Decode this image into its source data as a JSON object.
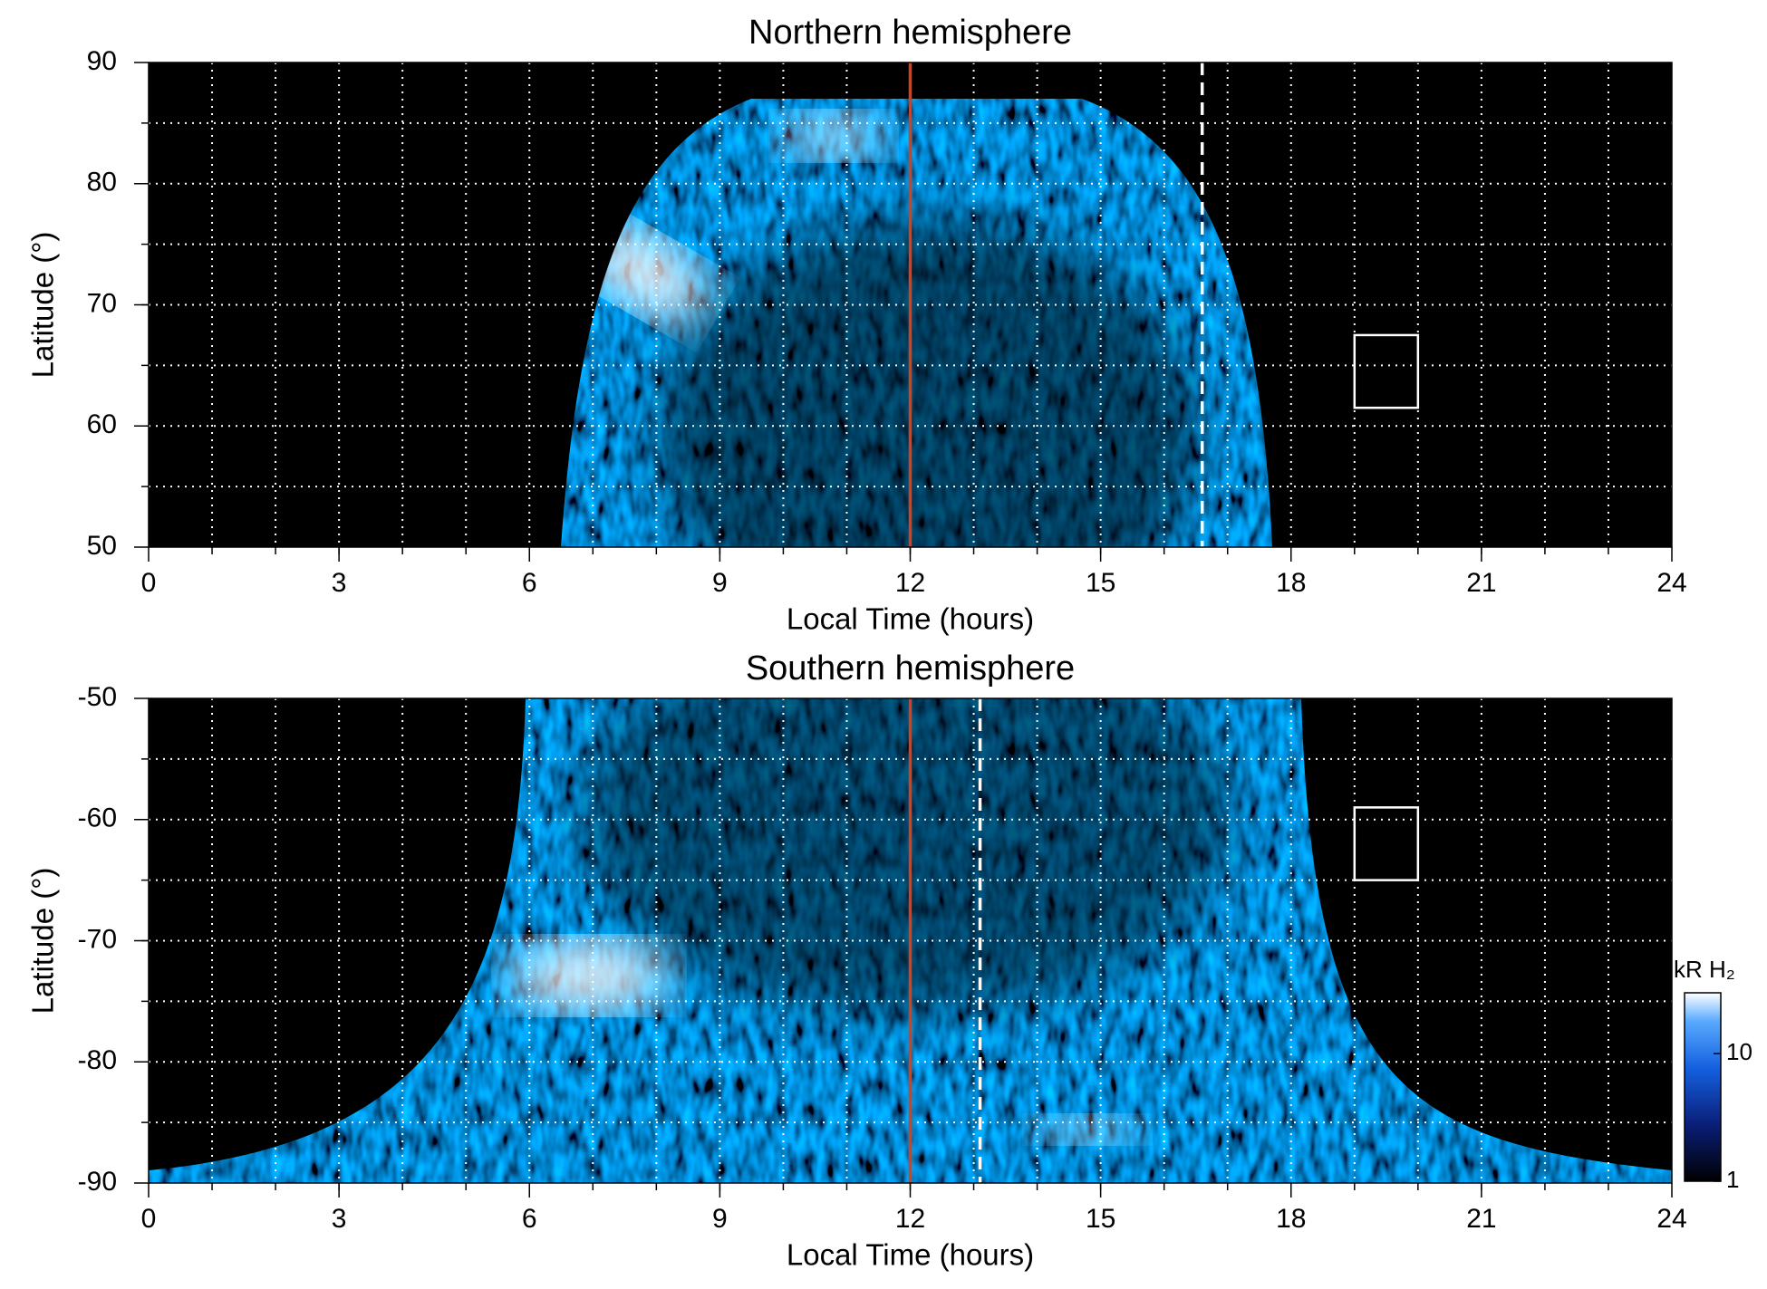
{
  "chart_data": [
    {
      "type": "heatmap",
      "title": "Northern hemisphere",
      "xlabel": "Local Time (hours)",
      "ylabel": "Latitude (°)",
      "xlim": [
        0,
        24
      ],
      "xticks": [
        0,
        3,
        6,
        9,
        12,
        15,
        18,
        21,
        24
      ],
      "ylim": [
        50,
        90
      ],
      "yticks": [
        50,
        60,
        70,
        80,
        90
      ],
      "xgrid": [
        1,
        2,
        3,
        4,
        5,
        6,
        7,
        8,
        9,
        10,
        11,
        12,
        13,
        14,
        15,
        16,
        17,
        18,
        19,
        20,
        21,
        22,
        23
      ],
      "ygrid": [
        55,
        60,
        65,
        70,
        75,
        80,
        85
      ],
      "vlines": [
        {
          "x": 12,
          "color": "#d2421e",
          "style": "solid"
        },
        {
          "x": 16.6,
          "color": "#ffffff",
          "style": "dashed"
        }
      ],
      "box": {
        "x": [
          19,
          20
        ],
        "y": [
          61.5,
          67.5
        ],
        "color": "#ffffff"
      }
    },
    {
      "type": "heatmap",
      "title": "Southern hemisphere",
      "xlabel": "Local Time (hours)",
      "ylabel": "Latitude (°)",
      "xlim": [
        0,
        24
      ],
      "xticks": [
        0,
        3,
        6,
        9,
        12,
        15,
        18,
        21,
        24
      ],
      "ylim": [
        -90,
        -50
      ],
      "yticks": [
        -90,
        -80,
        -70,
        -60,
        -50
      ],
      "xgrid": [
        1,
        2,
        3,
        4,
        5,
        6,
        7,
        8,
        9,
        10,
        11,
        12,
        13,
        14,
        15,
        16,
        17,
        18,
        19,
        20,
        21,
        22,
        23
      ],
      "ygrid": [
        -85,
        -80,
        -75,
        -70,
        -65,
        -60,
        -55
      ],
      "vlines": [
        {
          "x": 12,
          "color": "#d2421e",
          "style": "solid"
        },
        {
          "x": 13.1,
          "color": "#ffffff",
          "style": "dashed"
        }
      ],
      "box": {
        "x": [
          19,
          20
        ],
        "y": [
          -65,
          -59
        ],
        "color": "#ffffff"
      },
      "colorbar": {
        "label": "kR H₂",
        "lim": [
          1,
          30
        ],
        "ticks": [
          1,
          10
        ],
        "log": true
      }
    }
  ]
}
